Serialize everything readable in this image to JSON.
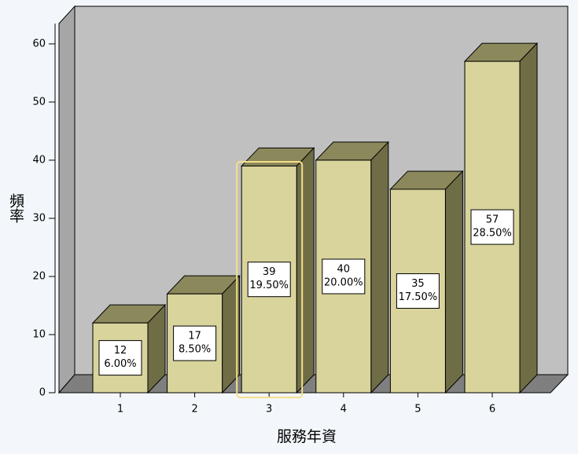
{
  "chart_data": {
    "type": "bar3d",
    "x_label": "服務年資",
    "y_label": "頻率",
    "categories": [
      "1",
      "2",
      "3",
      "4",
      "5",
      "6"
    ],
    "values": [
      12,
      17,
      39,
      40,
      35,
      57
    ],
    "percent_labels": [
      "6.00%",
      "8.50%",
      "19.50%",
      "20.00%",
      "17.50%",
      "28.50%"
    ],
    "color": "#d9d49c",
    "ylim": [
      0,
      63.5
    ],
    "yticks": [
      0,
      10,
      20,
      30,
      40,
      50,
      60
    ]
  }
}
